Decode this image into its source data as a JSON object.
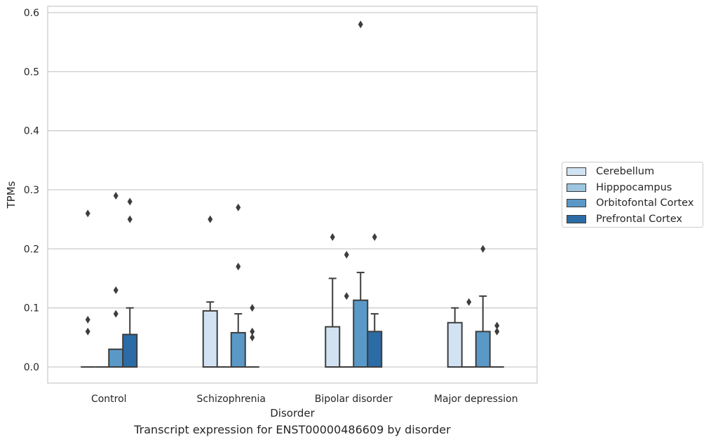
{
  "chart_data": {
    "type": "bar",
    "caption": "Transcript expression for ENST00000486609 by disorder",
    "xlabel": "Disorder",
    "ylabel": "TPMs",
    "ylim": [
      -0.028,
      0.61
    ],
    "yticks": [
      "0.0",
      "0.1",
      "0.2",
      "0.3",
      "0.4",
      "0.5",
      "0.6"
    ],
    "grid": true,
    "legend_position": "right",
    "categories": [
      "Control",
      "Schizophrenia",
      "Bipolar disorder",
      "Major depression"
    ],
    "series": [
      {
        "name": "Cerebellum",
        "color": "#d1e2f2",
        "values": [
          0.0,
          0.095,
          0.068,
          0.075
        ],
        "err_upper": [
          null,
          0.11,
          0.15,
          0.1
        ],
        "outliers": [
          [
            0.26,
            0.08,
            0.06
          ],
          [
            0.25
          ],
          [
            0.22
          ],
          []
        ]
      },
      {
        "name": "Hipppocampus",
        "color": "#9dc5e0",
        "values": [
          0.0,
          0.0,
          0.0,
          0.0
        ],
        "err_upper": [
          null,
          null,
          null,
          null
        ],
        "outliers": [
          [],
          [],
          [
            0.19,
            0.12
          ],
          [
            0.11
          ]
        ]
      },
      {
        "name": "Orbitofontal Cortex",
        "color": "#5a99c7",
        "values": [
          0.03,
          0.058,
          0.113,
          0.06
        ],
        "err_upper": [
          null,
          0.09,
          0.16,
          0.12
        ],
        "outliers": [
          [
            0.29,
            0.13,
            0.09
          ],
          [
            0.27,
            0.17
          ],
          [
            0.58
          ],
          [
            0.2
          ]
        ]
      },
      {
        "name": "Prefrontal Cortex",
        "color": "#2c6ca6",
        "values": [
          0.055,
          0.0,
          0.06,
          0.0
        ],
        "err_upper": [
          0.1,
          null,
          0.09,
          null
        ],
        "outliers": [
          [
            0.28,
            0.25
          ],
          [
            0.1,
            0.06,
            0.05
          ],
          [
            0.22
          ],
          [
            0.07,
            0.06
          ]
        ]
      }
    ]
  }
}
